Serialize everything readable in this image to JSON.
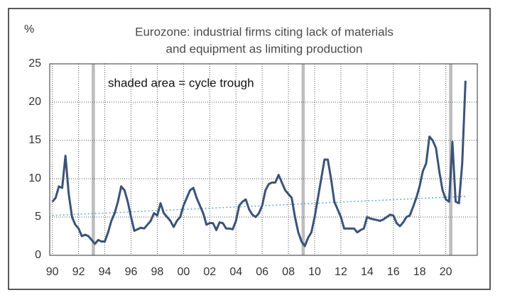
{
  "chart_data": {
    "type": "line",
    "title_lines": [
      "Eurozone: industrial firms citing lack of materials",
      "and equipment as limiting production"
    ],
    "y_label": "%",
    "annotation": "shaded area = cycle trough",
    "x": [
      1990,
      1990.25,
      1990.5,
      1990.75,
      1991,
      1991.25,
      1991.5,
      1991.75,
      1992,
      1992.25,
      1992.5,
      1992.75,
      1993,
      1993.25,
      1993.5,
      1993.75,
      1994,
      1994.25,
      1994.5,
      1994.75,
      1995,
      1995.25,
      1995.5,
      1995.75,
      1996,
      1996.25,
      1996.5,
      1996.75,
      1997,
      1997.25,
      1997.5,
      1997.75,
      1998,
      1998.25,
      1998.5,
      1998.75,
      1999,
      1999.25,
      1999.5,
      1999.75,
      2000,
      2000.25,
      2000.5,
      2000.75,
      2001,
      2001.25,
      2001.5,
      2001.75,
      2002,
      2002.25,
      2002.5,
      2002.75,
      2003,
      2003.25,
      2003.5,
      2003.75,
      2004,
      2004.25,
      2004.5,
      2004.75,
      2005,
      2005.25,
      2005.5,
      2005.75,
      2006,
      2006.25,
      2006.5,
      2006.75,
      2007,
      2007.25,
      2007.5,
      2007.75,
      2008,
      2008.25,
      2008.5,
      2008.75,
      2009,
      2009.25,
      2009.5,
      2009.75,
      2010,
      2010.25,
      2010.5,
      2010.75,
      2011,
      2011.25,
      2011.5,
      2011.75,
      2012,
      2012.25,
      2012.5,
      2012.75,
      2013,
      2013.25,
      2013.5,
      2013.75,
      2014,
      2014.25,
      2014.5,
      2014.75,
      2015,
      2015.25,
      2015.5,
      2015.75,
      2016,
      2016.25,
      2016.5,
      2016.75,
      2017,
      2017.25,
      2017.5,
      2017.75,
      2018,
      2018.25,
      2018.5,
      2018.75,
      2019,
      2019.25,
      2019.5,
      2019.75,
      2020,
      2020.25,
      2020.5,
      2020.75,
      2021,
      2021.25,
      2021.5
    ],
    "series": [
      {
        "color": "#3b5378",
        "values": [
          7,
          7.5,
          9,
          8.8,
          13,
          8,
          5,
          4,
          3.5,
          2.5,
          2.7,
          2.5,
          2,
          1.5,
          2,
          1.8,
          1.8,
          3,
          4.5,
          5.5,
          7,
          9,
          8.5,
          7,
          5,
          3.2,
          3.4,
          3.6,
          3.5,
          4,
          4.5,
          5.5,
          5.2,
          6.8,
          5.5,
          5,
          4.5,
          3.7,
          4.5,
          5,
          6.5,
          7.5,
          8.5,
          8.8,
          7.5,
          6.5,
          5.5,
          4,
          4.2,
          4.2,
          3.3,
          4.3,
          4.2,
          3.5,
          3.5,
          3.4,
          4.5,
          6.5,
          7,
          7.3,
          6,
          5.3,
          5,
          5.5,
          6.5,
          8.5,
          9.3,
          9.5,
          9.5,
          10.5,
          9.5,
          8.5,
          8,
          7.5,
          5,
          3,
          1.8,
          1.2,
          2.3,
          3,
          5,
          7.5,
          10,
          12.5,
          12.5,
          10,
          7,
          6,
          5,
          3.5,
          3.5,
          3.5,
          3.5,
          3,
          3.3,
          3.5,
          5,
          4.8,
          4.7,
          4.6,
          4.5,
          4.7,
          5,
          5.3,
          5.2,
          4.2,
          3.8,
          4.3,
          5,
          5.2,
          6.3,
          7.5,
          9,
          11,
          12,
          15.5,
          15,
          14,
          11,
          8.5,
          7.3,
          7,
          14.8,
          7,
          6.8,
          12,
          22.8
        ]
      }
    ],
    "trend": {
      "x": [
        1990,
        2021.5
      ],
      "values": [
        5.2,
        7.7
      ],
      "color": "#6aaed6"
    },
    "shaded_periods": [
      [
        1993,
        1993.25
      ],
      [
        2009,
        2009.25
      ],
      [
        2020.25,
        2020.5
      ]
    ],
    "shade_color": "#bdbdbd",
    "xlim": [
      1989.8,
      2022.4
    ],
    "xticks": [
      {
        "value": 1990,
        "label": "90"
      },
      {
        "value": 1992,
        "label": "92"
      },
      {
        "value": 1994,
        "label": "94"
      },
      {
        "value": 1996,
        "label": "96"
      },
      {
        "value": 1998,
        "label": "98"
      },
      {
        "value": 2000,
        "label": "00"
      },
      {
        "value": 2002,
        "label": "02"
      },
      {
        "value": 2004,
        "label": "04"
      },
      {
        "value": 2006,
        "label": "06"
      },
      {
        "value": 2008,
        "label": "08"
      },
      {
        "value": 2010,
        "label": "10"
      },
      {
        "value": 2012,
        "label": "12"
      },
      {
        "value": 2014,
        "label": "14"
      },
      {
        "value": 2016,
        "label": "16"
      },
      {
        "value": 2018,
        "label": "18"
      },
      {
        "value": 2020,
        "label": "20"
      }
    ],
    "ylim": [
      0,
      25
    ],
    "yticks": [
      0,
      5,
      10,
      15,
      20,
      25
    ],
    "grid": true
  }
}
